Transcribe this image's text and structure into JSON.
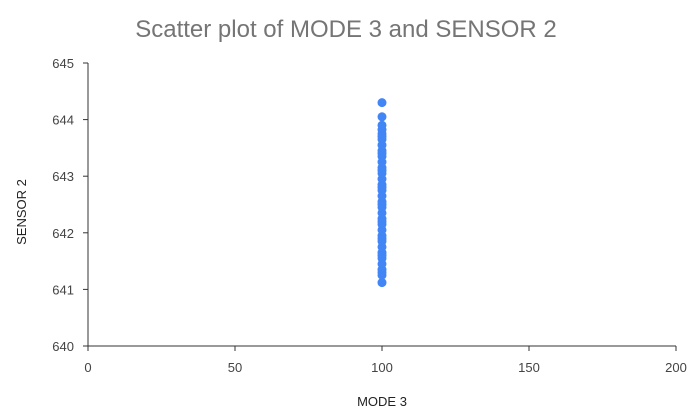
{
  "chart_data": {
    "type": "scatter",
    "title": "Scatter plot of MODE 3 and SENSOR 2",
    "xlabel": "MODE 3",
    "ylabel": "SENSOR 2",
    "xlim": [
      0,
      200
    ],
    "ylim": [
      640,
      645
    ],
    "x_ticks": [
      0,
      50,
      100,
      150,
      200
    ],
    "y_ticks": [
      640,
      641,
      642,
      643,
      644,
      645
    ],
    "x_tick_labels": [
      "0",
      "50",
      "100",
      "150",
      "200"
    ],
    "y_tick_labels": [
      "640",
      "641",
      "642",
      "643",
      "644",
      "645"
    ],
    "grid": false,
    "legend": "none",
    "point_color": "#4285f4",
    "series": [
      {
        "x": [
          100,
          100,
          100,
          100,
          100,
          100,
          100,
          100,
          100,
          100,
          100,
          100,
          100,
          100,
          100,
          100,
          100,
          100,
          100,
          100,
          100,
          100,
          100,
          100,
          100,
          100,
          100,
          100,
          100,
          100,
          100,
          100,
          100,
          100,
          100,
          100,
          100,
          100,
          100,
          100
        ],
        "y": [
          641.12,
          641.25,
          641.35,
          641.45,
          641.55,
          641.65,
          641.75,
          641.85,
          641.95,
          642.05,
          642.15,
          642.25,
          642.35,
          642.45,
          642.55,
          642.65,
          642.75,
          642.85,
          642.95,
          643.05,
          643.15,
          643.25,
          643.35,
          643.45,
          643.55,
          643.65,
          643.75,
          643.82,
          643.9,
          644.05,
          644.3,
          641.3,
          641.6,
          641.9,
          642.2,
          642.5,
          642.8,
          643.1,
          643.4,
          643.7
        ]
      }
    ]
  }
}
